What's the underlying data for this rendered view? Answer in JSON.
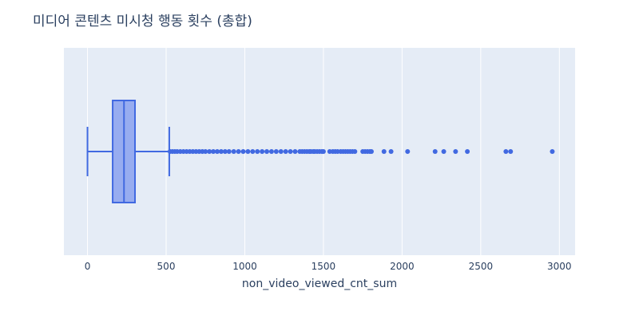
{
  "chart_data": {
    "type": "box",
    "title": "미디어 콘텐츠 미시청 행동 횟수 (총합)",
    "xlabel": "non_video_viewed_cnt_sum",
    "ylabel": "",
    "orientation": "horizontal",
    "xlim": [
      -150,
      3100
    ],
    "xticks": [
      0,
      500,
      1000,
      1500,
      2000,
      2500,
      3000
    ],
    "xtick_labels": [
      "0",
      "500",
      "1000",
      "1500",
      "2000",
      "2500",
      "3000"
    ],
    "grid": true,
    "legend": "none",
    "series": [
      {
        "box": {
          "lower_fence": 0,
          "q1": 160,
          "median": 232,
          "q3": 302,
          "upper_fence": 520
        },
        "outliers": [
          525,
          540,
          555,
          570,
          590,
          610,
          630,
          650,
          670,
          690,
          710,
          730,
          750,
          775,
          800,
          825,
          850,
          875,
          900,
          930,
          960,
          990,
          1020,
          1050,
          1080,
          1110,
          1140,
          1170,
          1200,
          1230,
          1260,
          1290,
          1320,
          1350,
          1365,
          1380,
          1395,
          1410,
          1420,
          1435,
          1445,
          1460,
          1475,
          1490,
          1500,
          1540,
          1560,
          1575,
          1590,
          1610,
          1625,
          1640,
          1655,
          1670,
          1685,
          1700,
          1750,
          1765,
          1780,
          1795,
          1805,
          1885,
          1930,
          2035,
          2210,
          2265,
          2340,
          2415,
          2660,
          2690,
          2955
        ]
      }
    ],
    "colors": {
      "box_fill": "#97acf0",
      "box_line": "#4169e1",
      "plot_bg": "#e5ecf6",
      "grid": "#ffffff",
      "text": "#2a3f5f"
    }
  }
}
